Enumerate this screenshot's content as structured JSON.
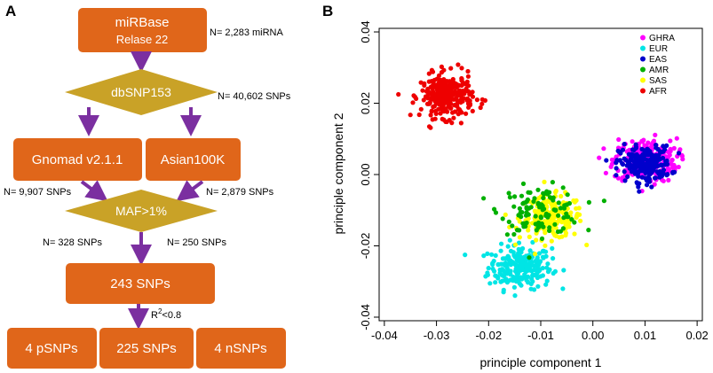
{
  "panel_a": {
    "letter": "A",
    "mirbase": {
      "line1": "miRBase",
      "line2": "Relase 22",
      "count": "N= 2,283 miRNA"
    },
    "dbsnp": {
      "label": "dbSNP153",
      "count": "N= 40,602 SNPs"
    },
    "gnomad": {
      "label": "Gnomad v2.1.1",
      "count": "N= 9,907 SNPs"
    },
    "asian": {
      "label": "Asian100K",
      "count": "N= 2,879 SNPs"
    },
    "maf": {
      "label": "MAF>1%",
      "left_count": "N= 328 SNPs",
      "right_count": "N= 250 SNPs"
    },
    "merged": {
      "label": "243 SNPs"
    },
    "r2": {
      "base": "R",
      "sup": "2",
      "rest": "<0.8"
    },
    "outputs": [
      "4 pSNPs",
      "225 SNPs",
      "4 nSNPs"
    ],
    "colors": {
      "box": "#E0661A",
      "diamond": "#C9A227",
      "arrow": "#7B2FA0"
    }
  },
  "panel_b": {
    "letter": "B",
    "chart_data": {
      "type": "scatter",
      "title": "",
      "xlabel": "principle component 1",
      "ylabel": "principle component 2",
      "xlim": [
        -0.041,
        0.021
      ],
      "ylim": [
        -0.041,
        0.041
      ],
      "x_ticks": [
        "-0.04",
        "-0.03",
        "-0.02",
        "-0.01",
        "0.00",
        "0.01",
        "0.02"
      ],
      "x_tick_values": [
        -0.04,
        -0.03,
        -0.02,
        -0.01,
        0.0,
        0.01,
        0.02
      ],
      "y_ticks": [
        "-0.04",
        "-0.02",
        "0.00",
        "0.02",
        "0.04"
      ],
      "y_tick_values": [
        -0.04,
        -0.02,
        0.0,
        0.02,
        0.04
      ],
      "legend_position": "top-right",
      "series": [
        {
          "name": "GHRA",
          "color": "#FF00FF",
          "center": [
            0.01,
            0.004
          ],
          "spread": [
            0.0055,
            0.0055
          ],
          "n": 260
        },
        {
          "name": "EUR",
          "color": "#00E5E5",
          "center": [
            -0.014,
            -0.026
          ],
          "spread": [
            0.0055,
            0.0055
          ],
          "n": 240
        },
        {
          "name": "EAS",
          "color": "#0000CC",
          "center": [
            0.01,
            0.003
          ],
          "spread": [
            0.0045,
            0.0045
          ],
          "n": 220
        },
        {
          "name": "AMR",
          "color": "#00B000",
          "center": [
            -0.01,
            -0.01
          ],
          "spread": [
            0.007,
            0.006
          ],
          "n": 110
        },
        {
          "name": "SAS",
          "color": "#FFFF00",
          "center": [
            -0.008,
            -0.012
          ],
          "spread": [
            0.0055,
            0.0055
          ],
          "n": 210
        },
        {
          "name": "AFR",
          "color": "#EE0000",
          "center": [
            -0.028,
            0.022
          ],
          "spread": [
            0.0045,
            0.0055
          ],
          "n": 300
        }
      ]
    }
  }
}
